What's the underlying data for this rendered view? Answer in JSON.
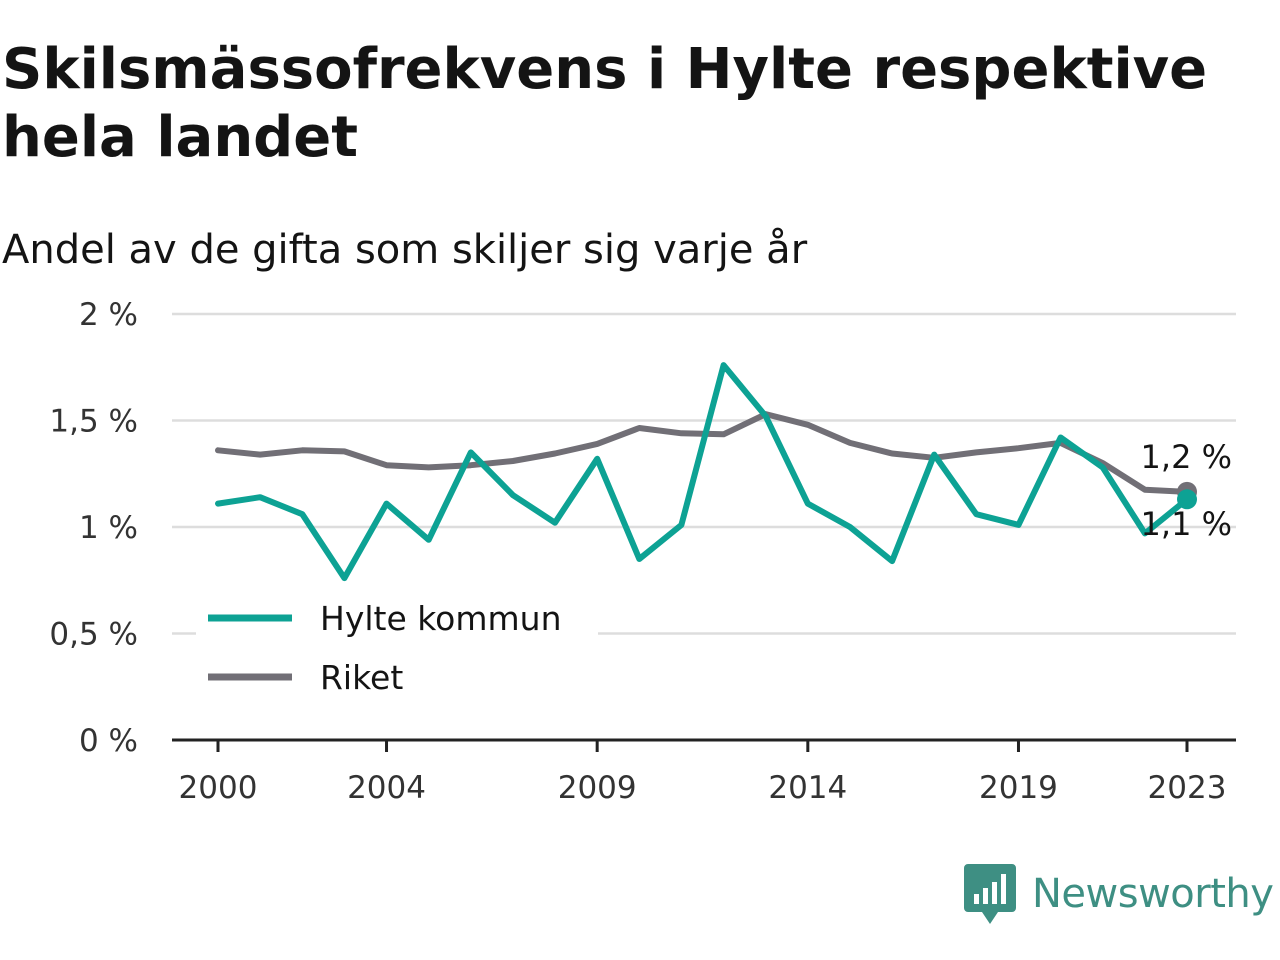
{
  "title": "Skilsmässofrekvens i Hylte respektive hela landet",
  "subtitle": "Andel av de gifta som skiljer sig varje år",
  "brand": {
    "name": "Newsworthy",
    "icon": "newsworthy-logo-icon",
    "color": "#3e8f83"
  },
  "chart_data": {
    "type": "line",
    "x": [
      2000,
      2001,
      2002,
      2003,
      2004,
      2005,
      2006,
      2007,
      2008,
      2009,
      2010,
      2011,
      2012,
      2013,
      2014,
      2015,
      2016,
      2017,
      2018,
      2019,
      2020,
      2021,
      2022,
      2023
    ],
    "series": [
      {
        "name": "Hylte kommun",
        "color": "#0da294",
        "values": [
          1.11,
          1.14,
          1.06,
          0.76,
          1.11,
          0.94,
          1.35,
          1.15,
          1.02,
          1.32,
          0.85,
          1.01,
          1.76,
          1.52,
          1.11,
          1.0,
          0.84,
          1.34,
          1.06,
          1.01,
          1.42,
          1.28,
          0.97,
          1.13
        ],
        "end_label": "1,1 %"
      },
      {
        "name": "Riket",
        "color": "#716f76",
        "values": [
          1.36,
          1.34,
          1.36,
          1.355,
          1.29,
          1.28,
          1.29,
          1.31,
          1.345,
          1.39,
          1.465,
          1.44,
          1.435,
          1.53,
          1.48,
          1.395,
          1.345,
          1.325,
          1.35,
          1.37,
          1.395,
          1.3,
          1.175,
          1.165
        ],
        "end_label": "1,2 %"
      }
    ],
    "x_ticks": [
      2000,
      2004,
      2009,
      2014,
      2019,
      2023
    ],
    "y_ticks": [
      0,
      0.5,
      1,
      1.5,
      2
    ],
    "y_tick_labels": [
      "0 %",
      "0,5 %",
      "1 %",
      "1,5 %",
      "2 %"
    ],
    "ylim": [
      0,
      2
    ],
    "xlim": [
      2000,
      2023
    ],
    "grid": true,
    "legend_position": "bottom-left"
  }
}
